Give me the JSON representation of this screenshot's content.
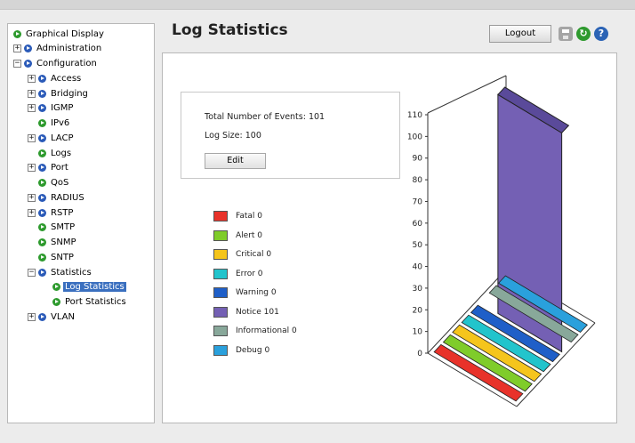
{
  "page": {
    "title": "Log Statistics"
  },
  "header": {
    "logout_label": "Logout"
  },
  "sidebar": {
    "items": [
      {
        "label": "Graphical Display",
        "expander": "",
        "bullet": "green",
        "depth": 0
      },
      {
        "label": "Administration",
        "expander": "+",
        "bullet": "blue",
        "depth": 0
      },
      {
        "label": "Configuration",
        "expander": "−",
        "bullet": "blue",
        "depth": 0
      },
      {
        "label": "Access",
        "expander": "+",
        "bullet": "blue",
        "depth": 1
      },
      {
        "label": "Bridging",
        "expander": "+",
        "bullet": "blue",
        "depth": 1
      },
      {
        "label": "IGMP",
        "expander": "+",
        "bullet": "blue",
        "depth": 1
      },
      {
        "label": "IPv6",
        "expander": "",
        "bullet": "green",
        "depth": 1
      },
      {
        "label": "LACP",
        "expander": "+",
        "bullet": "blue",
        "depth": 1
      },
      {
        "label": "Logs",
        "expander": "",
        "bullet": "green",
        "depth": 1
      },
      {
        "label": "Port",
        "expander": "+",
        "bullet": "blue",
        "depth": 1
      },
      {
        "label": "QoS",
        "expander": "",
        "bullet": "green",
        "depth": 1
      },
      {
        "label": "RADIUS",
        "expander": "+",
        "bullet": "blue",
        "depth": 1
      },
      {
        "label": "RSTP",
        "expander": "+",
        "bullet": "blue",
        "depth": 1
      },
      {
        "label": "SMTP",
        "expander": "",
        "bullet": "green",
        "depth": 1
      },
      {
        "label": "SNMP",
        "expander": "",
        "bullet": "green",
        "depth": 1
      },
      {
        "label": "SNTP",
        "expander": "",
        "bullet": "green",
        "depth": 1
      },
      {
        "label": "Statistics",
        "expander": "−",
        "bullet": "blue",
        "depth": 1
      },
      {
        "label": "Log Statistics",
        "expander": "",
        "bullet": "green",
        "depth": 2,
        "selected": true
      },
      {
        "label": "Port Statistics",
        "expander": "",
        "bullet": "green",
        "depth": 2
      },
      {
        "label": "VLAN",
        "expander": "+",
        "bullet": "blue",
        "depth": 1
      }
    ]
  },
  "stats": {
    "total_events_label": "Total Number of Events:",
    "total_events_value": "101",
    "log_size_label": "Log Size:",
    "log_size_value": "100",
    "edit_label": "Edit"
  },
  "colors": {
    "selected": "#3a6fbf",
    "fatal": "#e8322a",
    "alert": "#7fcc2a",
    "critical": "#f5c51c",
    "error": "#22c4cc",
    "warning": "#1f5fc8",
    "notice": "#7460b4",
    "informational": "#88a89a",
    "debug": "#2aa0dc"
  },
  "chart_data": {
    "type": "bar",
    "categories": [
      "Fatal",
      "Alert",
      "Critical",
      "Error",
      "Warning",
      "Notice",
      "Informational",
      "Debug"
    ],
    "values": [
      0,
      0,
      0,
      0,
      0,
      101,
      0,
      0
    ],
    "legend_labels": [
      "Fatal 0",
      "Alert 0",
      "Critical 0",
      "Error 0",
      "Warning 0",
      "Notice 101",
      "Informational 0",
      "Debug 0"
    ],
    "ylim": [
      0,
      110
    ],
    "yticks": [
      "0",
      "10",
      "20",
      "30",
      "40",
      "50",
      "60",
      "70",
      "80",
      "90",
      "100",
      "110"
    ],
    "legend_position": "left",
    "grid": false
  }
}
